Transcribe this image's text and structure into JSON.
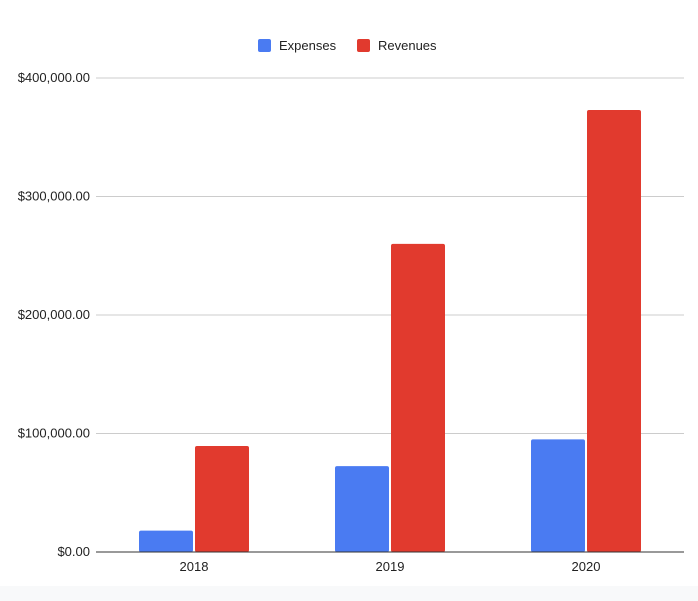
{
  "chart_data": {
    "type": "bar",
    "categories": [
      "2018",
      "2019",
      "2020"
    ],
    "series": [
      {
        "name": "Expenses",
        "color": "#4a7bf2",
        "values": [
          18000,
          72500,
          95000
        ]
      },
      {
        "name": "Revenues",
        "color": "#e13a2e",
        "values": [
          89500,
          260000,
          373000
        ]
      }
    ],
    "y_ticks": [
      "$0.00",
      "$100,000.00",
      "$200,000.00",
      "$300,000.00",
      "$400,000.00"
    ],
    "y_tick_values": [
      0,
      100000,
      200000,
      300000,
      400000
    ],
    "ylim": [
      0,
      400000
    ],
    "grid": true,
    "legend_position": "top-center",
    "title": "",
    "xlabel": "",
    "ylabel": ""
  }
}
